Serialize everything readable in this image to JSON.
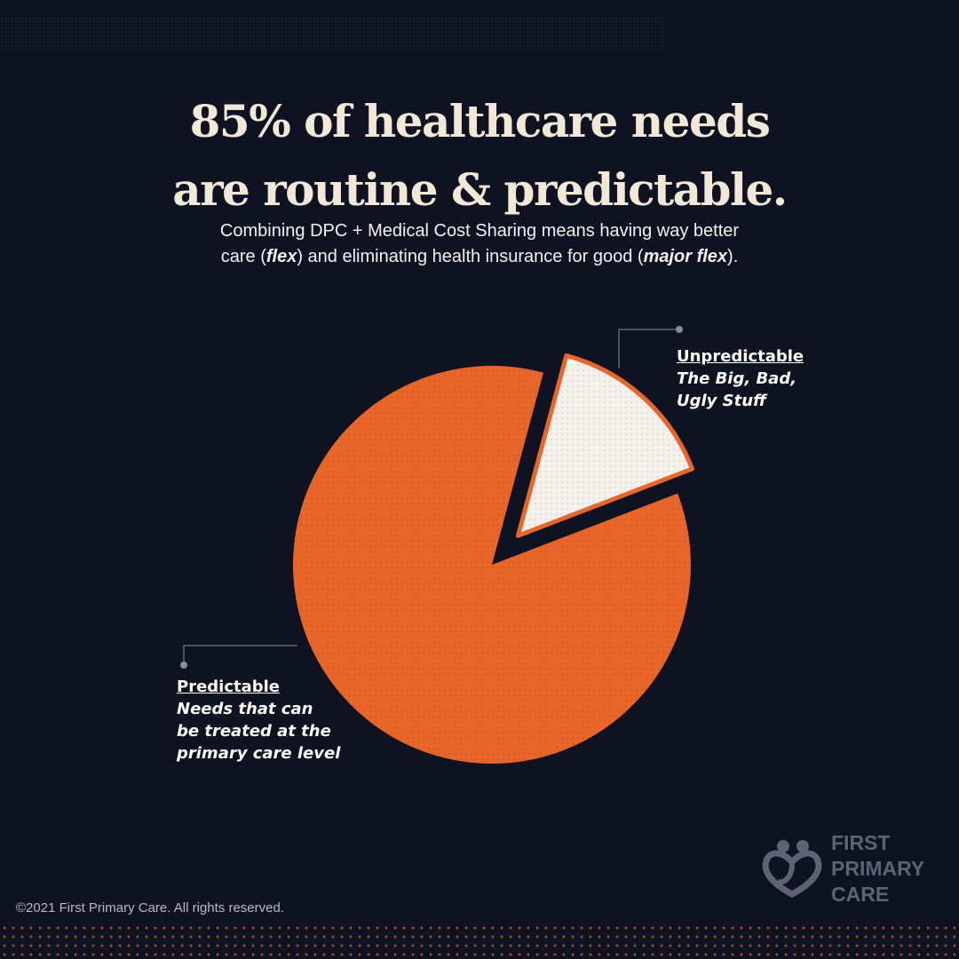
{
  "title": {
    "line1": "85% of healthcare needs",
    "line2": "are routine & predictable."
  },
  "subtitle": {
    "line1": "Combining DPC + Medical Cost Sharing means having way better",
    "line2_parts": [
      "care (",
      "flex",
      ") and eliminating health insurance for good (",
      "major flex",
      ")."
    ]
  },
  "chart_data": {
    "type": "pie",
    "slices": [
      {
        "label": "Predictable",
        "description": "Needs that can be treated at the primary care level",
        "value": 85,
        "color": "#e8662a",
        "exploded": false
      },
      {
        "label": "Unpredictable",
        "description": "The Big, Bad, Ugly Stuff",
        "value": 15,
        "color": "#f4f1ec",
        "exploded": true
      }
    ]
  },
  "callouts": {
    "unpredictable": {
      "head": "Unpredictable",
      "desc_lines": [
        "The Big, Bad,",
        "Ugly Stuff"
      ]
    },
    "predictable": {
      "head": "Predictable",
      "desc_lines": [
        "Needs that can",
        "be treated at the",
        "primary care level"
      ]
    }
  },
  "footer": {
    "copyright": "©2021 First Primary Care. All rights reserved."
  },
  "logo": {
    "lines": [
      "FIRST",
      "PRIMARY",
      "CARE"
    ],
    "icon": "heart-people-icon"
  },
  "colors": {
    "background": "#0f1321",
    "accent": "#e8662a",
    "title": "#f1e8d8"
  }
}
